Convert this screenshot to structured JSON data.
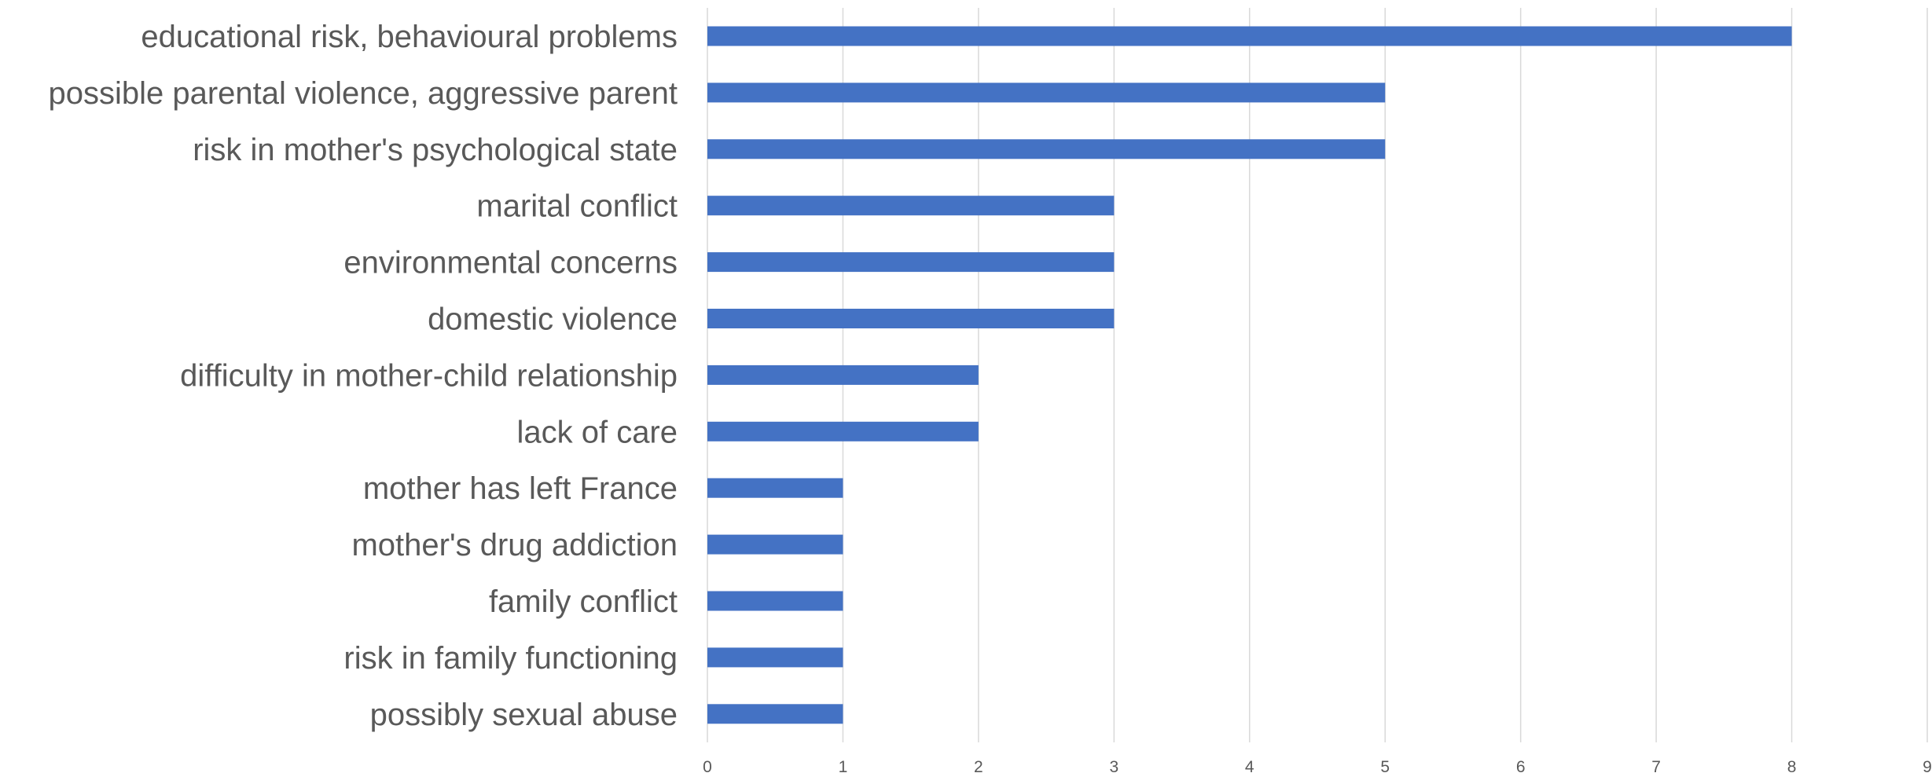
{
  "chart_data": {
    "type": "bar",
    "orientation": "horizontal",
    "categories": [
      "educational risk, behavioural problems",
      "possible parental violence, aggressive parent",
      "risk in mother's psychological state",
      "marital conflict",
      "environmental concerns",
      "domestic violence",
      "difficulty in mother-child relationship",
      "lack of care",
      "mother has left France",
      "mother's drug addiction",
      "family conflict",
      "risk in family functioning",
      "possibly sexual abuse"
    ],
    "values": [
      8,
      5,
      5,
      3,
      3,
      3,
      2,
      2,
      1,
      1,
      1,
      1,
      1
    ],
    "xlim": [
      0,
      9
    ],
    "xticks": [
      "0",
      "1",
      "2",
      "3",
      "4",
      "5",
      "6",
      "7",
      "8",
      "9"
    ],
    "title": "",
    "xlabel": "",
    "ylabel": "",
    "grid": "vertical",
    "legend": "none",
    "bar_color": "#4472C4"
  }
}
